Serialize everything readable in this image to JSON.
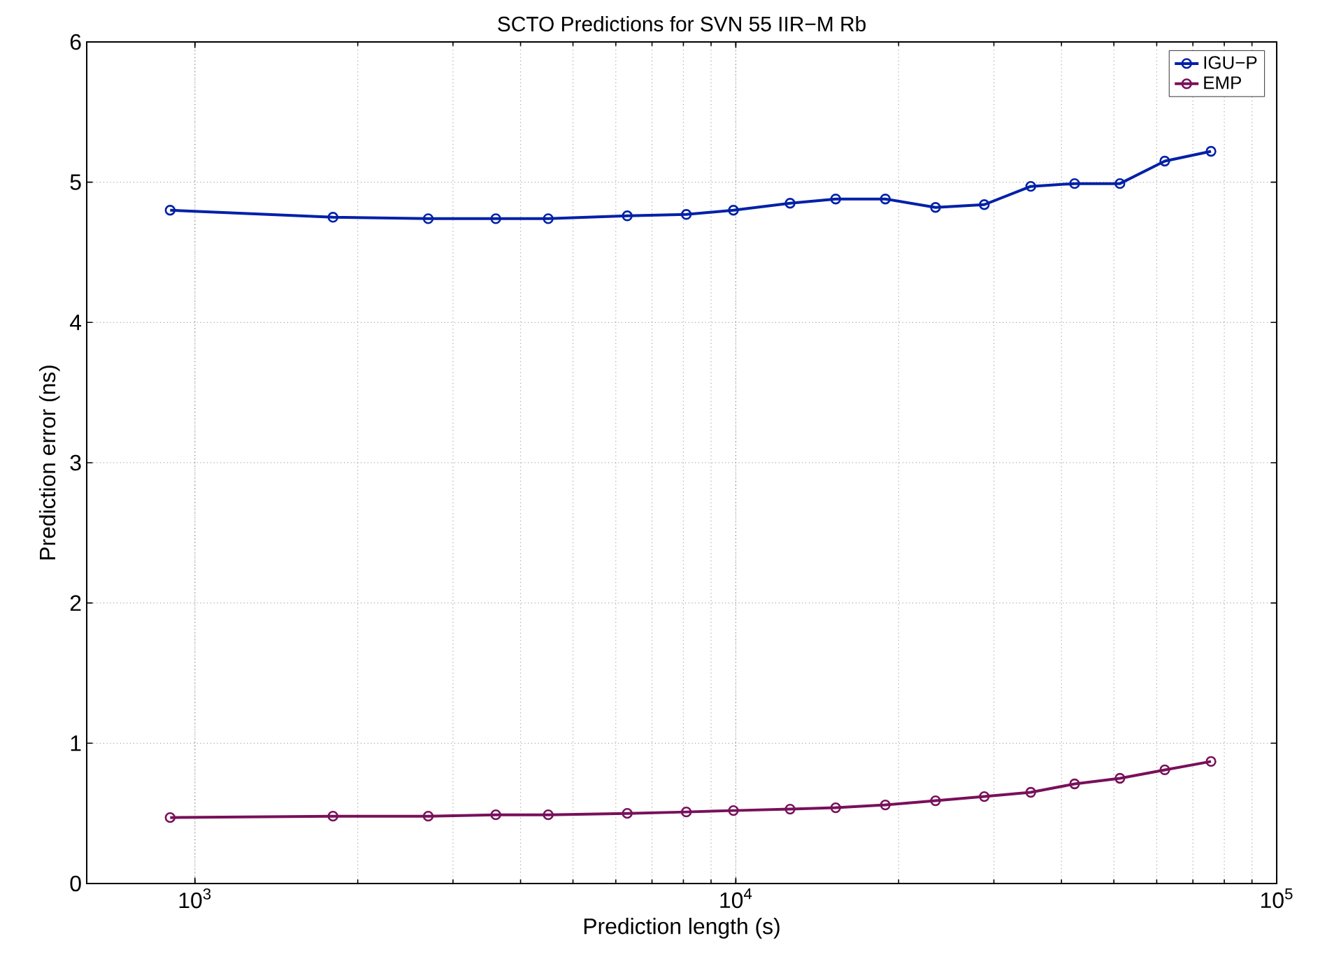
{
  "chart_data": {
    "type": "line",
    "title": "SCTO Predictions for SVN 55 IIR−M Rb",
    "xlabel": "Prediction length (s)",
    "ylabel": "Prediction error (ns)",
    "x": [
      900,
      1800,
      2700,
      3600,
      4500,
      6300,
      8100,
      9900,
      12600,
      15300,
      18900,
      23400,
      28800,
      35100,
      42300,
      51300,
      62100,
      75600
    ],
    "series": [
      {
        "name": "IGU−P",
        "color": "#0020a8",
        "values": [
          4.8,
          4.75,
          4.74,
          4.74,
          4.74,
          4.76,
          4.77,
          4.8,
          4.85,
          4.88,
          4.88,
          4.82,
          4.84,
          4.97,
          4.99,
          4.99,
          5.15,
          5.22
        ]
      },
      {
        "name": "EMP",
        "color": "#78105a",
        "values": [
          0.47,
          0.48,
          0.48,
          0.49,
          0.49,
          0.5,
          0.51,
          0.52,
          0.53,
          0.54,
          0.56,
          0.59,
          0.62,
          0.65,
          0.71,
          0.75,
          0.81,
          0.87
        ]
      }
    ],
    "log": "x",
    "xlim": [
      631,
      100000
    ],
    "xticks": [
      {
        "value": 1000,
        "label": "10$^{3}$"
      },
      {
        "value": 10000,
        "label": "10$^{4}$"
      },
      {
        "value": 100000,
        "label": "10$^{5}$"
      }
    ],
    "ylim": [
      0,
      6
    ],
    "yticks": [
      0,
      1,
      2,
      3,
      4,
      5,
      6
    ],
    "grid": true,
    "legend": "top right",
    "marker": "circle",
    "line_style": "solid"
  }
}
